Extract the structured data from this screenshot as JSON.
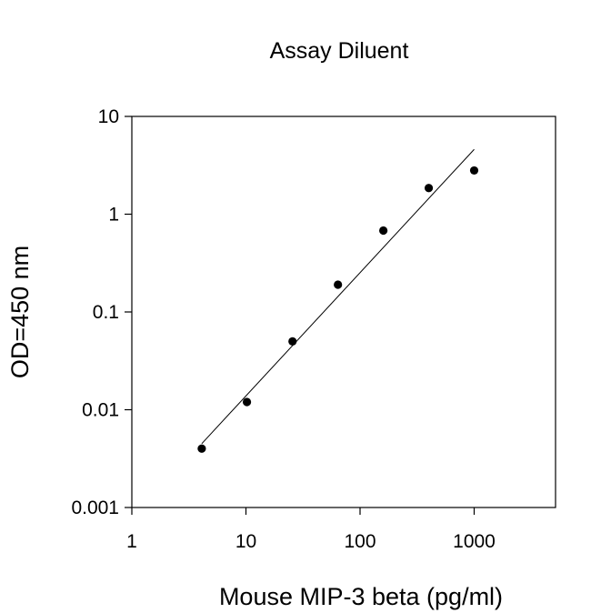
{
  "chart_data": {
    "type": "scatter",
    "title": "Assay Diluent",
    "xlabel": "Mouse MIP-3 beta (pg/ml)",
    "ylabel": "OD=450 nm",
    "xscale": "log",
    "yscale": "log",
    "xlim": [
      1,
      5000
    ],
    "ylim": [
      0.001,
      10
    ],
    "xticks": [
      1,
      10,
      100,
      1000
    ],
    "xtick_labels": [
      "1",
      "10",
      "100",
      "1000"
    ],
    "yticks": [
      0.001,
      0.01,
      0.1,
      1,
      10
    ],
    "ytick_labels": [
      "0.001",
      "0.01",
      "0.1",
      "1",
      "10"
    ],
    "grid": false,
    "legend": "none",
    "marker_color": "#000000",
    "series": [
      {
        "x": [
          4.1,
          10.2,
          25.6,
          64,
          160,
          400,
          1000
        ],
        "y": [
          0.004,
          0.012,
          0.05,
          0.19,
          0.68,
          1.85,
          2.8
        ]
      }
    ],
    "fit_line": {
      "type": "linear-log-log",
      "x": [
        4.1,
        1000
      ],
      "y": [
        0.0045,
        4.6
      ]
    }
  }
}
